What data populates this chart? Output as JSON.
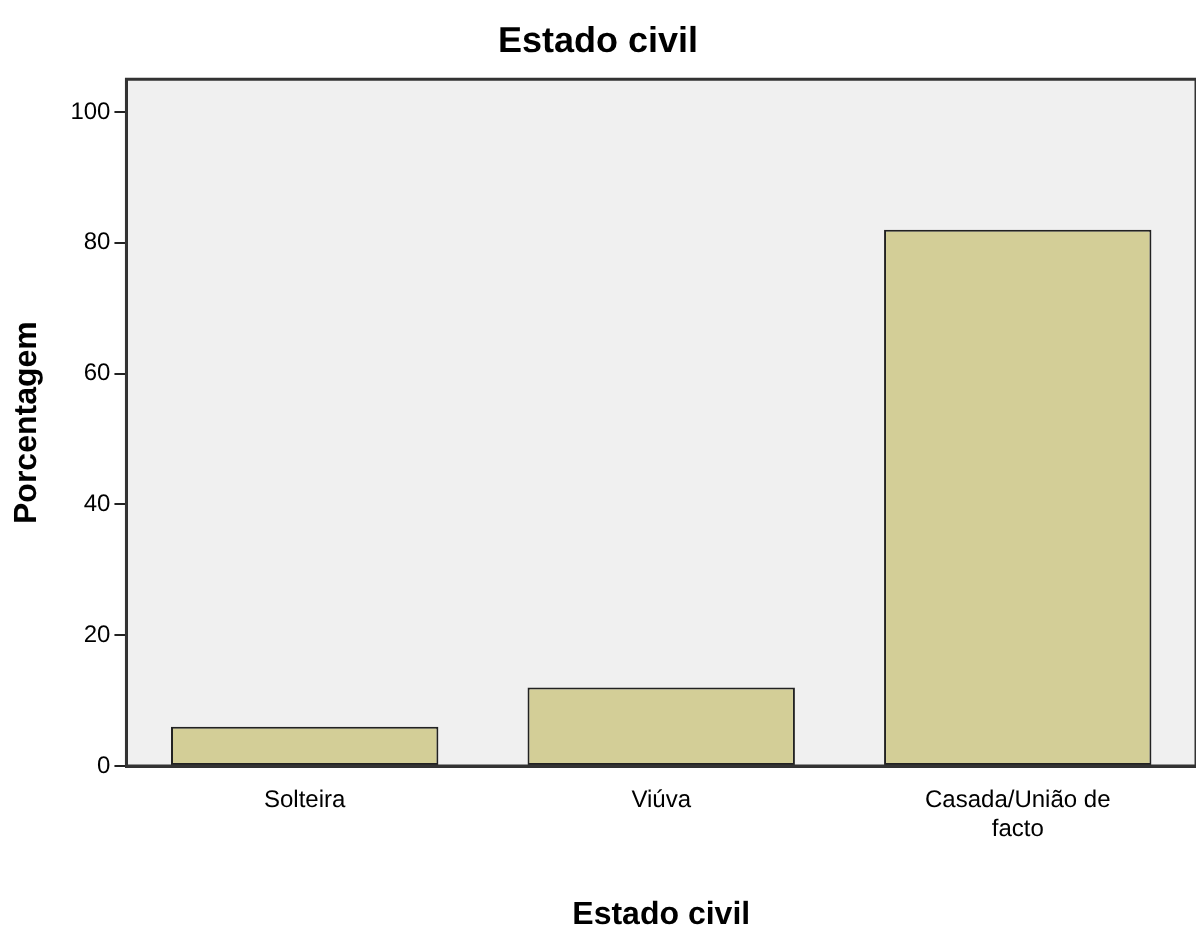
{
  "chart_data": {
    "type": "bar",
    "title": "Estado civil",
    "xlabel": "Estado civil",
    "ylabel": "Porcentagem",
    "categories": [
      "Solteira",
      "Viúva",
      "Casada/União de facto"
    ],
    "values": [
      6,
      12,
      82
    ],
    "color": "#d3ce97",
    "ylim": [
      0,
      105
    ],
    "yticks": [
      0,
      20,
      40,
      60,
      80,
      100
    ],
    "grid": false,
    "legend": false
  }
}
